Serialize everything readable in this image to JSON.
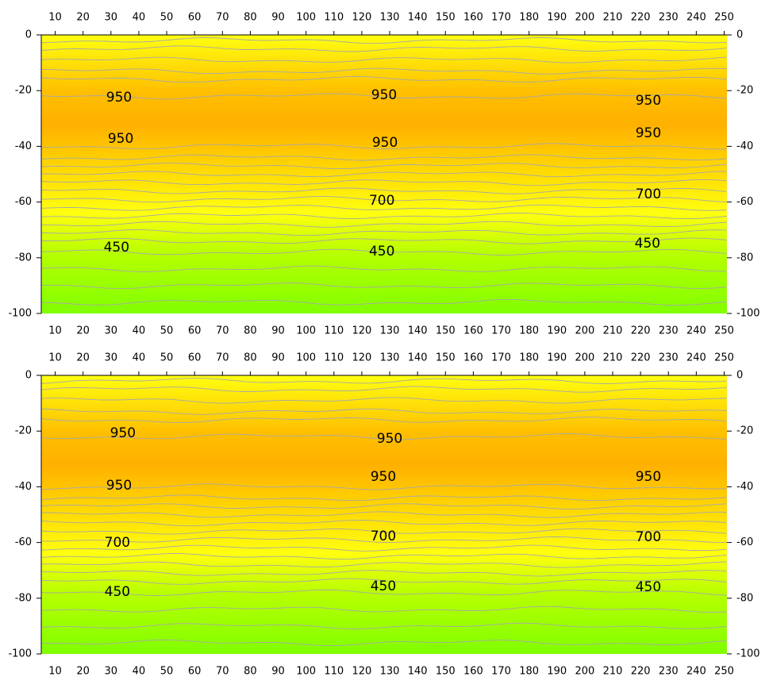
{
  "chart_data": [
    {
      "type": "contour",
      "xlim": [
        5,
        251
      ],
      "ylim": [
        -100,
        0
      ],
      "xticks": [
        10,
        20,
        30,
        40,
        50,
        60,
        70,
        80,
        90,
        100,
        110,
        120,
        130,
        140,
        150,
        160,
        170,
        180,
        190,
        200,
        210,
        220,
        230,
        240,
        250
      ],
      "yticks": [
        0,
        -20,
        -40,
        -60,
        -80,
        -100
      ],
      "contour_labels": [
        {
          "x": 32.9,
          "y": -22.5,
          "value": 950
        },
        {
          "x": 128,
          "y": -21.7,
          "value": 950
        },
        {
          "x": 222.8,
          "y": -23.6,
          "value": 950
        },
        {
          "x": 33.5,
          "y": -37.3,
          "value": 950
        },
        {
          "x": 128.3,
          "y": -38.7,
          "value": 950
        },
        {
          "x": 222.8,
          "y": -35.3,
          "value": 950
        },
        {
          "x": 127.2,
          "y": -59.5,
          "value": 700
        },
        {
          "x": 222.8,
          "y": -57.3,
          "value": 700
        },
        {
          "x": 32,
          "y": -76.4,
          "value": 450
        },
        {
          "x": 127.2,
          "y": -77.8,
          "value": 450
        },
        {
          "x": 222.5,
          "y": -74.9,
          "value": 450
        }
      ]
    },
    {
      "type": "contour",
      "xlim": [
        5,
        251
      ],
      "ylim": [
        -100,
        0
      ],
      "xticks": [
        10,
        20,
        30,
        40,
        50,
        60,
        70,
        80,
        90,
        100,
        110,
        120,
        130,
        140,
        150,
        160,
        170,
        180,
        190,
        200,
        210,
        220,
        230,
        240,
        250
      ],
      "yticks": [
        0,
        -20,
        -40,
        -60,
        -80,
        -100
      ],
      "contour_labels": [
        {
          "x": 34.3,
          "y": -20.8,
          "value": 950
        },
        {
          "x": 130,
          "y": -22.8,
          "value": 950
        },
        {
          "x": 32.9,
          "y": -39.6,
          "value": 950
        },
        {
          "x": 127.7,
          "y": -36.5,
          "value": 950
        },
        {
          "x": 222.8,
          "y": -36.5,
          "value": 950
        },
        {
          "x": 32.3,
          "y": -60.1,
          "value": 700
        },
        {
          "x": 127.7,
          "y": -57.8,
          "value": 700
        },
        {
          "x": 222.8,
          "y": -58.1,
          "value": 700
        },
        {
          "x": 32.3,
          "y": -77.8,
          "value": 450
        },
        {
          "x": 127.7,
          "y": -75.8,
          "value": 450
        },
        {
          "x": 222.8,
          "y": -76.1,
          "value": 450
        }
      ]
    }
  ]
}
